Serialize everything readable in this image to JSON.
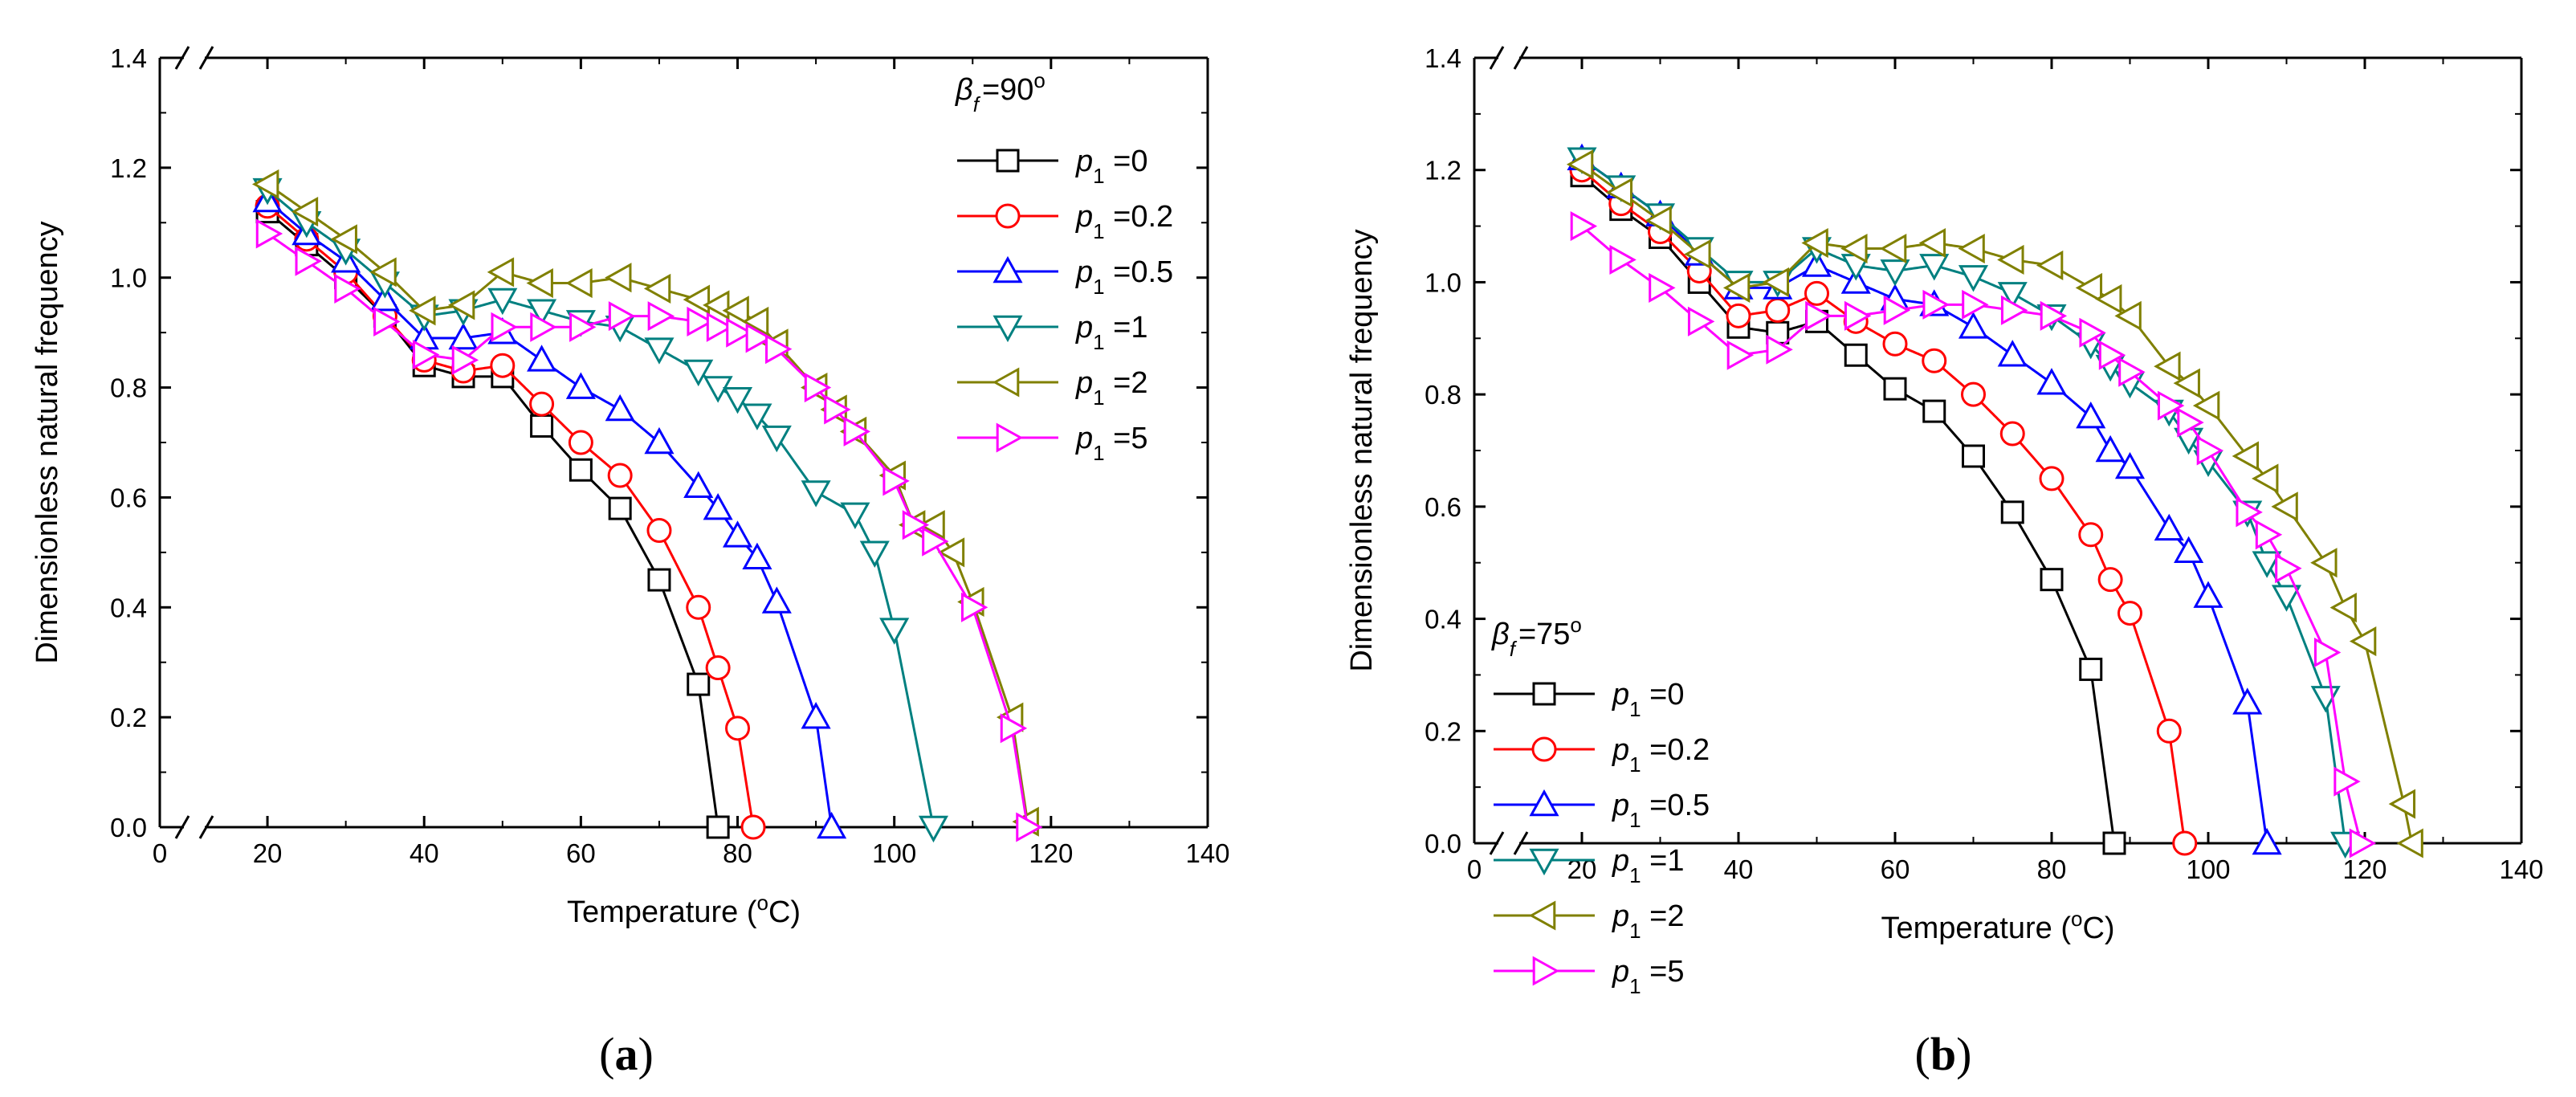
{
  "chart_data": [
    {
      "type": "line",
      "panel_label": "(a)",
      "panel_letter": "a",
      "xlabel_prefix": "Temperature (",
      "xlabel_deg": "o",
      "xlabel_suffix": "C)",
      "ylabel": "Dimensionless natural frequency",
      "xlim": [
        0,
        140
      ],
      "ylim": [
        0,
        1.4
      ],
      "xticks": [
        "0",
        "20",
        "40",
        "60",
        "80",
        "100",
        "120",
        "140"
      ],
      "yticks": [
        "0.0",
        "0.2",
        "0.4",
        "0.6",
        "0.8",
        "1.0",
        "1.2",
        "1.4"
      ],
      "legend_title_symbol": "β",
      "legend_title_sub": "f",
      "legend_title_value": "=90",
      "legend_title_deg": "o",
      "legend_location": "top-right",
      "series": [
        {
          "name_symbol": "p",
          "name_sub": "1",
          "name_value": "=0",
          "color": "#000000",
          "marker": "square",
          "x": [
            20,
            25,
            30,
            35,
            40,
            45,
            50,
            55,
            60,
            65,
            70,
            75,
            77.5
          ],
          "y": [
            1.12,
            1.06,
            1.0,
            0.93,
            0.84,
            0.82,
            0.82,
            0.73,
            0.65,
            0.58,
            0.45,
            0.26,
            0.0
          ]
        },
        {
          "name_symbol": "p",
          "name_sub": "1",
          "name_value": "=0.2",
          "color": "#ff0000",
          "marker": "circle",
          "x": [
            20,
            25,
            30,
            35,
            40,
            45,
            50,
            55,
            60,
            65,
            70,
            75,
            77.5,
            80,
            82
          ],
          "y": [
            1.13,
            1.07,
            1.01,
            0.93,
            0.85,
            0.83,
            0.84,
            0.77,
            0.7,
            0.64,
            0.54,
            0.4,
            0.29,
            0.18,
            0.0
          ]
        },
        {
          "name_symbol": "p",
          "name_sub": "1",
          "name_value": "=0.5",
          "color": "#0000ff",
          "marker": "triangle-up",
          "x": [
            20,
            25,
            30,
            35,
            40,
            45,
            50,
            55,
            60,
            65,
            70,
            75,
            77.5,
            80,
            82.5,
            85,
            90,
            92
          ],
          "y": [
            1.14,
            1.08,
            1.03,
            0.96,
            0.89,
            0.89,
            0.9,
            0.85,
            0.8,
            0.76,
            0.7,
            0.62,
            0.58,
            0.53,
            0.49,
            0.41,
            0.2,
            0.0
          ]
        },
        {
          "name_symbol": "p",
          "name_sub": "1",
          "name_value": "=1",
          "color": "#008080",
          "marker": "triangle-down",
          "x": [
            20,
            25,
            30,
            35,
            40,
            45,
            50,
            55,
            60,
            65,
            70,
            75,
            77.5,
            80,
            82.5,
            85,
            90,
            95,
            97.5,
            100,
            105
          ],
          "y": [
            1.16,
            1.1,
            1.05,
            0.99,
            0.93,
            0.94,
            0.96,
            0.94,
            0.92,
            0.91,
            0.87,
            0.83,
            0.8,
            0.78,
            0.75,
            0.71,
            0.61,
            0.57,
            0.5,
            0.36,
            0.0
          ]
        },
        {
          "name_symbol": "p",
          "name_sub": "1",
          "name_value": "=2",
          "color": "#808000",
          "marker": "triangle-left",
          "x": [
            20,
            25,
            30,
            35,
            40,
            45,
            50,
            55,
            60,
            65,
            70,
            75,
            77.5,
            80,
            82.5,
            85,
            90,
            92.5,
            95,
            100,
            102.5,
            105,
            107.5,
            110,
            115,
            117
          ],
          "y": [
            1.17,
            1.12,
            1.07,
            1.01,
            0.94,
            0.95,
            1.01,
            0.99,
            0.99,
            1.0,
            0.98,
            0.96,
            0.95,
            0.94,
            0.92,
            0.88,
            0.8,
            0.76,
            0.72,
            0.64,
            0.55,
            0.55,
            0.5,
            0.41,
            0.2,
            0.01
          ]
        },
        {
          "name_symbol": "p",
          "name_sub": "1",
          "name_value": "=5",
          "color": "#ff00ff",
          "marker": "triangle-right",
          "x": [
            20,
            25,
            30,
            35,
            40,
            45,
            50,
            55,
            60,
            65,
            70,
            75,
            77.5,
            80,
            82.5,
            85,
            90,
            92.5,
            95,
            100,
            102.5,
            105,
            110,
            115,
            117
          ],
          "y": [
            1.08,
            1.03,
            0.98,
            0.92,
            0.86,
            0.85,
            0.91,
            0.91,
            0.91,
            0.93,
            0.93,
            0.92,
            0.91,
            0.9,
            0.89,
            0.87,
            0.8,
            0.76,
            0.72,
            0.63,
            0.55,
            0.52,
            0.4,
            0.18,
            0.0
          ]
        }
      ]
    },
    {
      "type": "line",
      "panel_label": "(b)",
      "panel_letter": "b",
      "xlabel_prefix": "Temperature (",
      "xlabel_deg": "o",
      "xlabel_suffix": "C)",
      "ylabel": "Dimensionless natural frequency",
      "xlim": [
        0,
        140
      ],
      "ylim": [
        0,
        1.4
      ],
      "xticks": [
        "0",
        "20",
        "40",
        "60",
        "80",
        "100",
        "120",
        "140"
      ],
      "yticks": [
        "0.0",
        "0.2",
        "0.4",
        "0.6",
        "0.8",
        "1.0",
        "1.2",
        "1.4"
      ],
      "legend_title_symbol": "β",
      "legend_title_sub": "f",
      "legend_title_value": "=75",
      "legend_title_deg": "o",
      "legend_location": "center-left",
      "series": [
        {
          "name_symbol": "p",
          "name_sub": "1",
          "name_value": "=0",
          "color": "#000000",
          "marker": "square",
          "x": [
            20,
            25,
            30,
            35,
            40,
            45,
            50,
            55,
            60,
            65,
            70,
            75,
            80,
            85,
            88
          ],
          "y": [
            1.19,
            1.13,
            1.08,
            1.0,
            0.92,
            0.91,
            0.93,
            0.87,
            0.81,
            0.77,
            0.69,
            0.59,
            0.47,
            0.31,
            0.0
          ]
        },
        {
          "name_symbol": "p",
          "name_sub": "1",
          "name_value": "=0.2",
          "color": "#ff0000",
          "marker": "circle",
          "x": [
            20,
            25,
            30,
            35,
            40,
            45,
            50,
            55,
            60,
            65,
            70,
            75,
            80,
            85,
            87.5,
            90,
            95,
            97
          ],
          "y": [
            1.2,
            1.14,
            1.09,
            1.02,
            0.94,
            0.95,
            0.98,
            0.93,
            0.89,
            0.86,
            0.8,
            0.73,
            0.65,
            0.55,
            0.47,
            0.41,
            0.2,
            0.0
          ]
        },
        {
          "name_symbol": "p",
          "name_sub": "1",
          "name_value": "=0.5",
          "color": "#0000ff",
          "marker": "triangle-up",
          "x": [
            20,
            25,
            30,
            35,
            40,
            45,
            50,
            55,
            60,
            65,
            70,
            75,
            80,
            85,
            87.5,
            90,
            95,
            97.5,
            100,
            105,
            107.5
          ],
          "y": [
            1.22,
            1.17,
            1.12,
            1.05,
            0.99,
            0.99,
            1.03,
            1.0,
            0.97,
            0.96,
            0.92,
            0.87,
            0.82,
            0.76,
            0.7,
            0.67,
            0.56,
            0.52,
            0.44,
            0.25,
            0.0
          ]
        },
        {
          "name_symbol": "p",
          "name_sub": "1",
          "name_value": "=1",
          "color": "#008080",
          "marker": "triangle-down",
          "x": [
            20,
            25,
            30,
            35,
            40,
            45,
            50,
            55,
            60,
            65,
            70,
            75,
            80,
            85,
            87.5,
            90,
            95,
            97.5,
            100,
            105,
            107.5,
            110,
            115,
            117.5
          ],
          "y": [
            1.22,
            1.17,
            1.12,
            1.06,
            1.0,
            1.0,
            1.06,
            1.03,
            1.02,
            1.03,
            1.01,
            0.98,
            0.94,
            0.89,
            0.85,
            0.82,
            0.77,
            0.72,
            0.68,
            0.59,
            0.5,
            0.44,
            0.26,
            0.0
          ]
        },
        {
          "name_symbol": "p",
          "name_sub": "1",
          "name_value": "=2",
          "color": "#808000",
          "marker": "triangle-left",
          "x": [
            20,
            25,
            30,
            35,
            40,
            45,
            50,
            55,
            60,
            65,
            70,
            75,
            80,
            85,
            87.5,
            90,
            95,
            97.5,
            100,
            105,
            107.5,
            110,
            115,
            117.5,
            120,
            125,
            126
          ],
          "y": [
            1.21,
            1.16,
            1.11,
            1.05,
            0.99,
            1.0,
            1.07,
            1.06,
            1.06,
            1.07,
            1.06,
            1.04,
            1.03,
            0.99,
            0.97,
            0.94,
            0.85,
            0.82,
            0.78,
            0.69,
            0.65,
            0.6,
            0.5,
            0.42,
            0.36,
            0.07,
            0.0
          ]
        },
        {
          "name_symbol": "p",
          "name_sub": "1",
          "name_value": "=5",
          "color": "#ff00ff",
          "marker": "triangle-right",
          "x": [
            20,
            25,
            30,
            35,
            40,
            45,
            50,
            55,
            60,
            65,
            70,
            75,
            80,
            85,
            87.5,
            90,
            95,
            97.5,
            100,
            105,
            107.5,
            110,
            115,
            117.5,
            119.5
          ],
          "y": [
            1.1,
            1.04,
            0.99,
            0.93,
            0.87,
            0.88,
            0.94,
            0.94,
            0.95,
            0.96,
            0.96,
            0.95,
            0.94,
            0.91,
            0.87,
            0.84,
            0.78,
            0.75,
            0.7,
            0.59,
            0.55,
            0.49,
            0.34,
            0.11,
            0.0
          ]
        }
      ]
    }
  ]
}
